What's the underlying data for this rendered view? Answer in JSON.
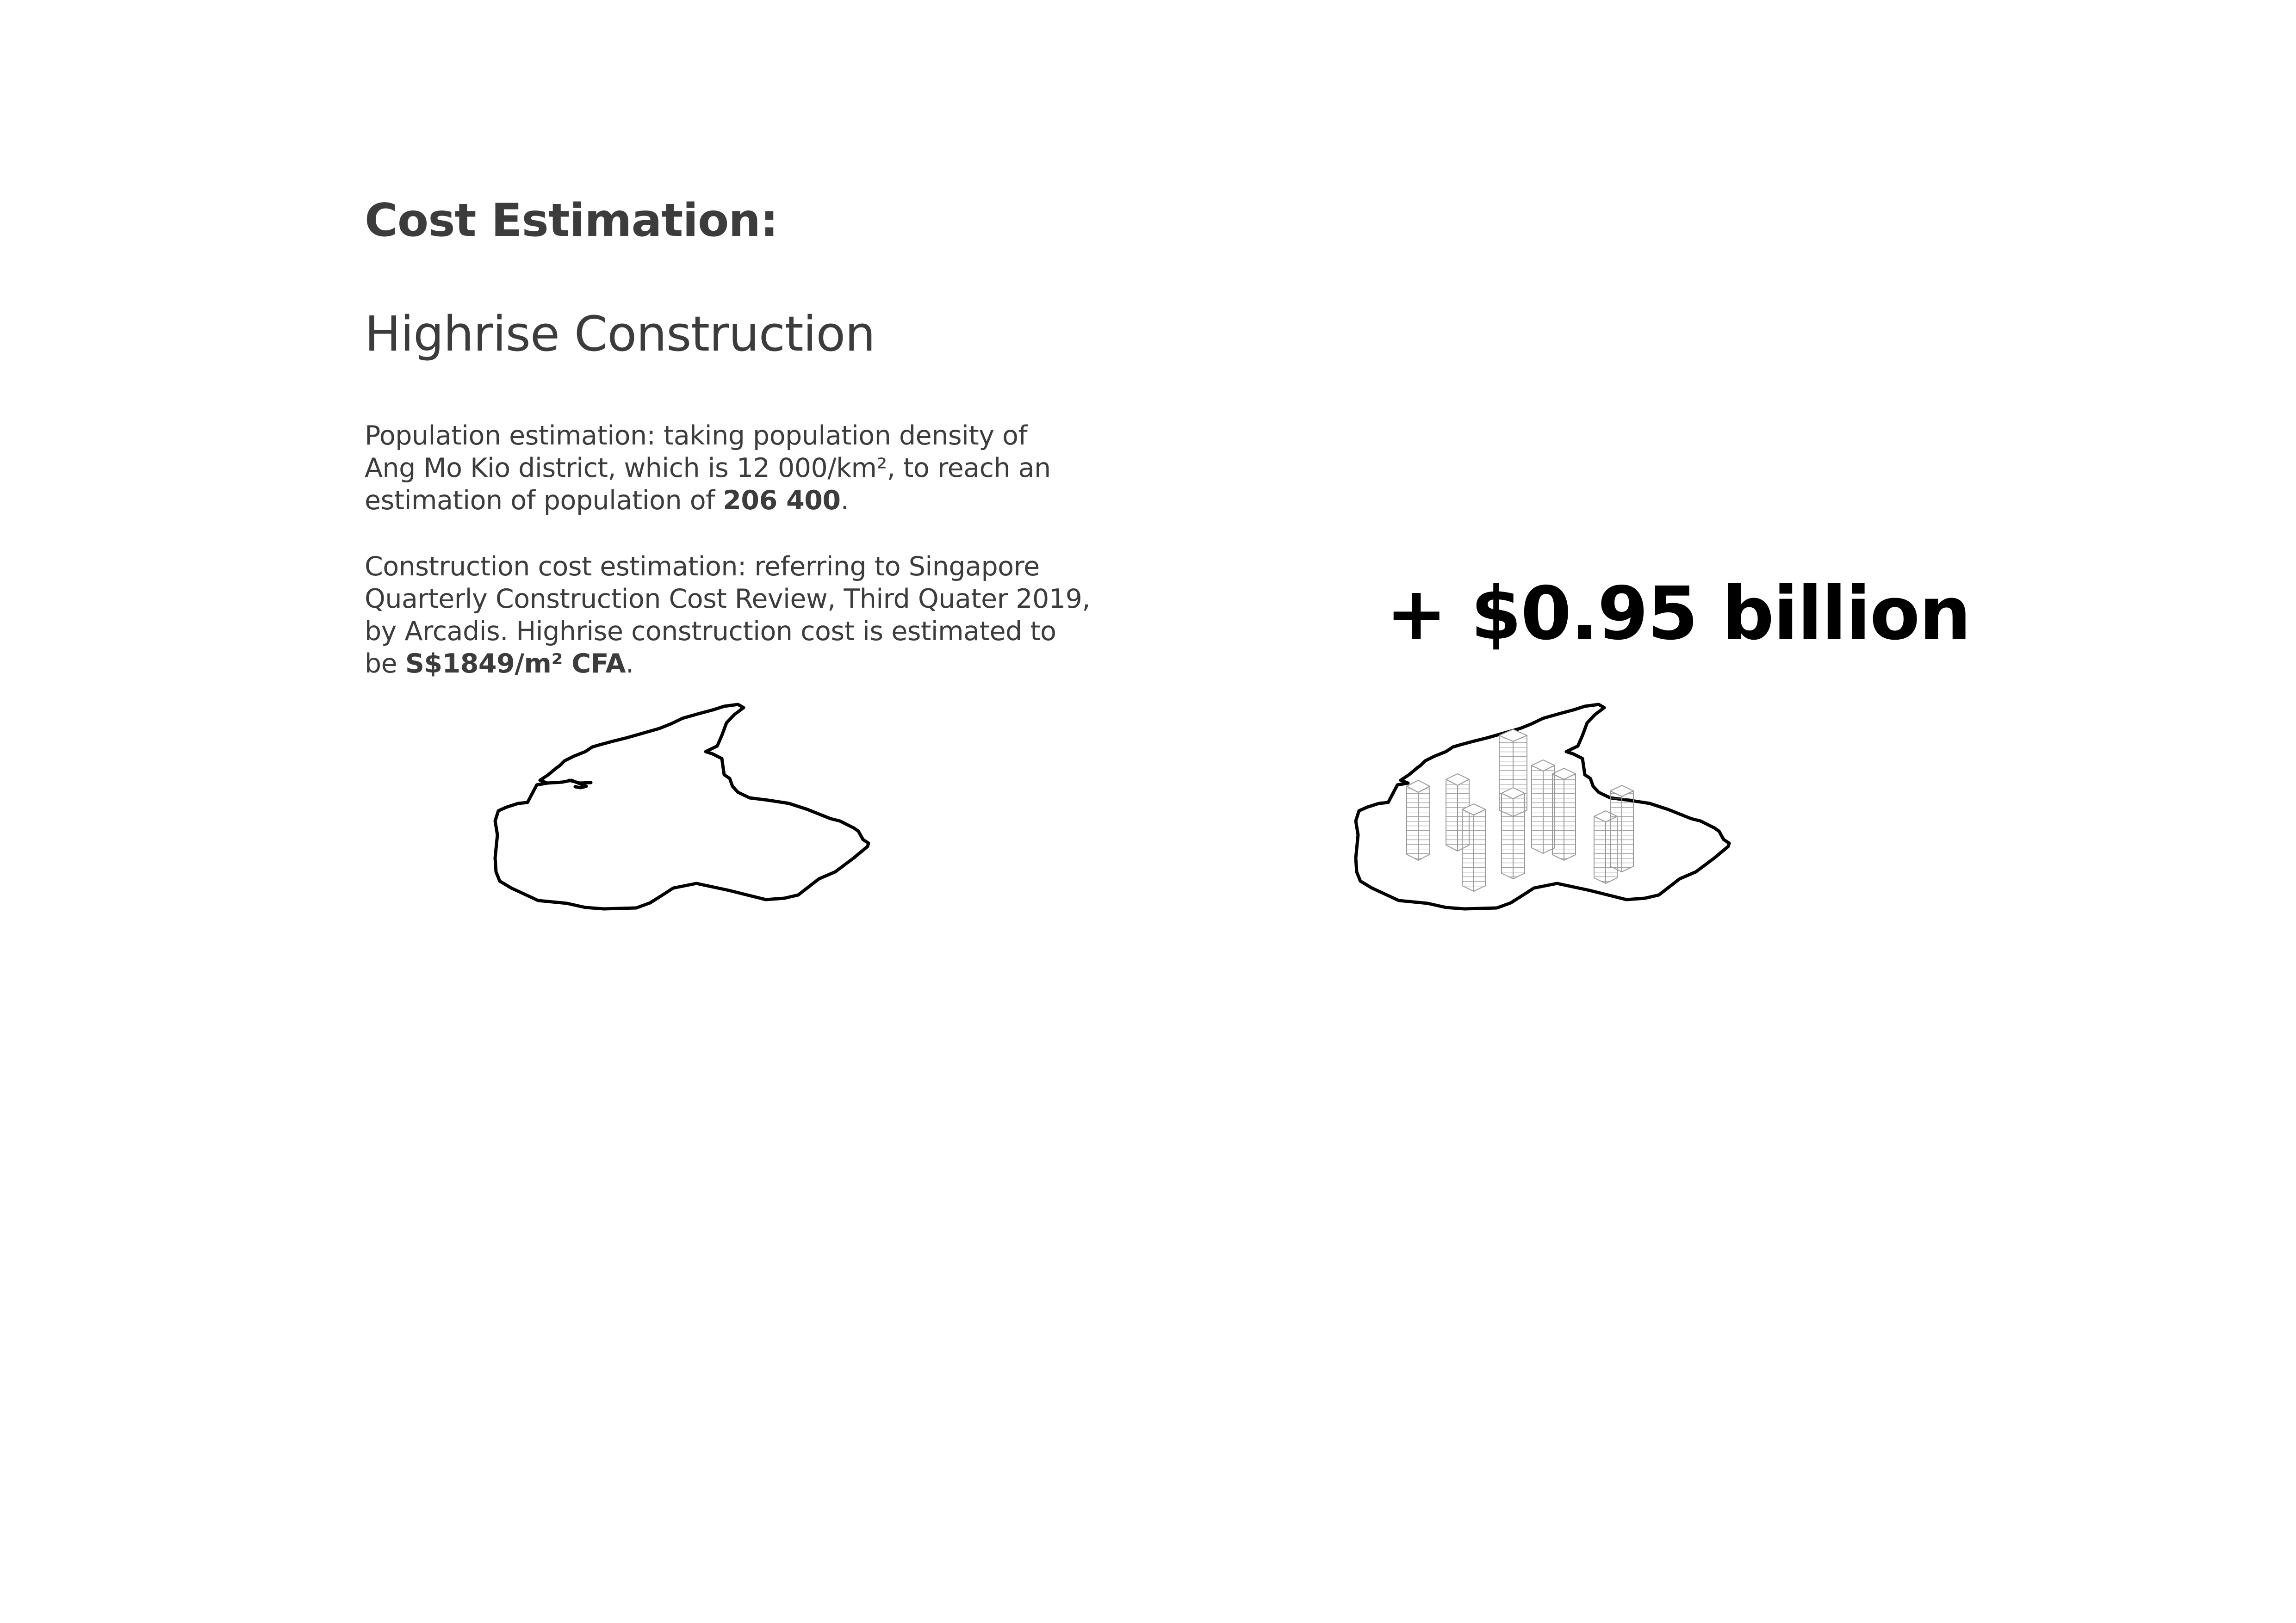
{
  "page": {
    "title": "Cost Estimation:",
    "subtitle": "Highrise Construction"
  },
  "population": {
    "line1": "Population estimation: taking population density of",
    "line2": "Ang Mo Kio district, which is 12 000/km², to reach an",
    "line3_prefix": "estimation of population of ",
    "line3_value": "206 400",
    "line3_suffix": "."
  },
  "construction": {
    "line1": "Construction cost estimation: referring to Singapore",
    "line2": "Quarterly Construction Cost Review, Third Quater 2019,",
    "line3": "by Arcadis. Highrise construction cost is estimated to",
    "line4_prefix": "be ",
    "line4_value": "S$1849/m² CFA",
    "line4_suffix": "."
  },
  "result": {
    "total_cost": "+ $0.95 billion"
  },
  "colors": {
    "text": "#3c3c3c",
    "emphasis": "#000000",
    "outline": "#000000",
    "building_stroke": "#9a9a9a"
  },
  "icons": {
    "district_map_left": "district-outline",
    "district_map_right": "district-outline-with-highrise-buildings"
  }
}
